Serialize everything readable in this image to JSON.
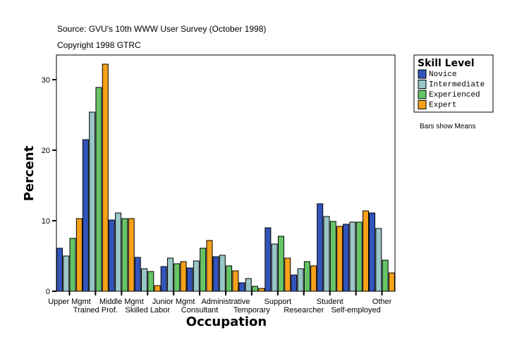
{
  "chart_data": {
    "type": "bar",
    "title_lines": [
      "Source: GVU's 10th WWW User Survey (October 1998)",
      "Copyright 1998 GTRC"
    ],
    "xlabel": "Occupation",
    "ylabel": "Percent",
    "ylim": [
      0,
      33.5
    ],
    "yticks": [
      0,
      10,
      20,
      30
    ],
    "categories": [
      "Upper Mgmt",
      "Trained Prof.",
      "Middle Mgmt",
      "Skilled Labor",
      "Junior Mgmt",
      "Consultant",
      "Administrative",
      "Temporary",
      "Support",
      "Researcher",
      "Student",
      "Self-employed",
      "Other"
    ],
    "legend_title": "Skill Level",
    "legend_placement": "right",
    "note": "Bars show Means",
    "series": [
      {
        "name": "Novice",
        "color": "#3355bb",
        "values": [
          6.1,
          21.5,
          10.1,
          4.8,
          3.5,
          3.3,
          4.9,
          1.2,
          9.0,
          2.3,
          12.4,
          9.5,
          11.1
        ]
      },
      {
        "name": "Intermediate",
        "color": "#99c6c6",
        "values": [
          5.0,
          25.4,
          11.1,
          3.2,
          4.7,
          4.3,
          5.1,
          1.8,
          6.7,
          3.2,
          10.6,
          9.8,
          8.9
        ]
      },
      {
        "name": "Experienced",
        "color": "#66c466",
        "values": [
          7.5,
          28.9,
          10.3,
          2.8,
          3.9,
          6.1,
          3.6,
          0.7,
          7.8,
          4.2,
          9.9,
          9.8,
          4.4
        ]
      },
      {
        "name": "Expert",
        "color": "#f5a11a",
        "values": [
          10.3,
          32.2,
          10.3,
          0.8,
          4.2,
          7.2,
          2.9,
          0.4,
          4.7,
          3.6,
          9.2,
          11.4,
          2.6
        ]
      }
    ]
  }
}
